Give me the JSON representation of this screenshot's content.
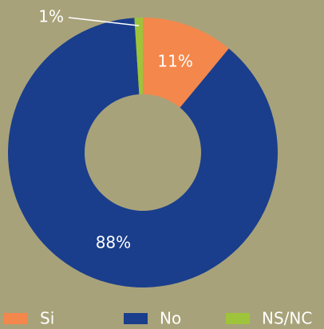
{
  "chart_data": {
    "type": "donut",
    "categories": [
      "Si",
      "No",
      "NS/NC"
    ],
    "values": [
      11,
      88,
      1
    ],
    "value_labels": [
      "11%",
      "88%",
      "1%"
    ],
    "colors": [
      "#f4874b",
      "#1a3e8c",
      "#9dc43a"
    ],
    "legend": "bottom"
  }
}
